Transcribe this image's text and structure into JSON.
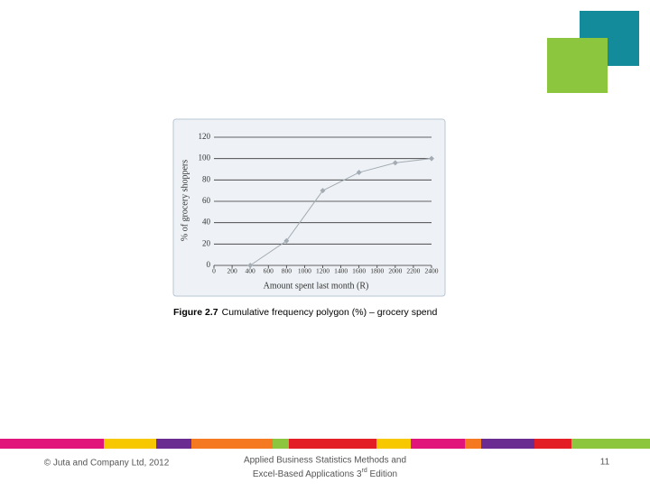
{
  "chart_data": {
    "type": "line",
    "y_label": "% of grocery shoppers",
    "x_label": "Amount spent last month (R)",
    "caption_label": "Figure 2.7",
    "caption": "Cumulative frequency polygon (%) – grocery spend",
    "x": [
      400,
      800,
      1200,
      1600,
      2000,
      2400
    ],
    "series": [
      {
        "color": "#a3abb3",
        "values": [
          0,
          23,
          70,
          87,
          96,
          100
        ]
      }
    ],
    "xlim": [
      0,
      2400
    ],
    "xticks": [
      0,
      200,
      400,
      600,
      800,
      1000,
      1200,
      1400,
      1600,
      1800,
      2000,
      2200,
      2400
    ],
    "ylim": [
      0,
      120
    ],
    "yticks": [
      0,
      20,
      40,
      60,
      80,
      100,
      120
    ],
    "grid": true
  },
  "footer": {
    "copyright": "© Juta and Company Ltd, 2012",
    "book_line1": "Applied Business Statistics Methods and",
    "book_line2": "Excel-Based Applications 3",
    "book_sup": "rd",
    "book_end": " Edition",
    "page": "11"
  }
}
